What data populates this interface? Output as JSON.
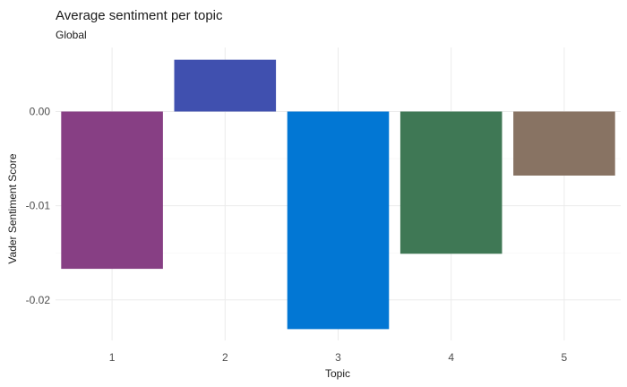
{
  "chart_data": {
    "type": "bar",
    "title": "Average sentiment per topic",
    "subtitle": "Global",
    "xlabel": "Topic",
    "ylabel": "Vader Sentiment Score",
    "categories": [
      "1",
      "2",
      "3",
      "4",
      "5"
    ],
    "values": [
      -0.0167,
      0.0055,
      -0.0231,
      -0.0151,
      -0.0068
    ],
    "colors": [
      "#873F84",
      "#4050AF",
      "#0277D4",
      "#3F7855",
      "#887363"
    ],
    "yticks": [
      0.0,
      -0.01,
      -0.02
    ],
    "ytick_labels": [
      "0.00",
      "-0.01",
      "-0.02"
    ],
    "ylim": [
      -0.0243,
      0.0068
    ],
    "grid": true,
    "legend": "none"
  }
}
